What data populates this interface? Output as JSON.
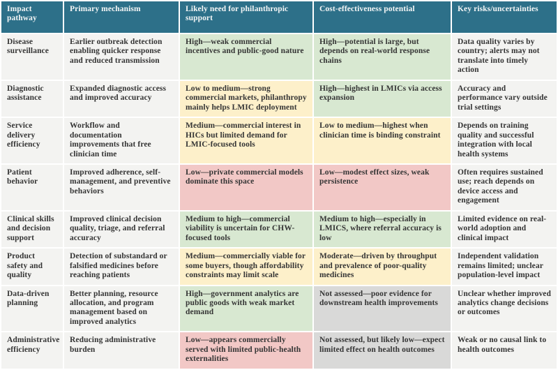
{
  "palette": {
    "header_bg": "#2d7089",
    "header_text": "#f4f6f6",
    "body_text": "#353535",
    "grid": "#ffffff",
    "green": "#d8e8d1",
    "yellow": "#fdf0ca",
    "pink": "#f2c8c6",
    "gray": "#d9d9d8",
    "neutral": "#f3f3f1"
  },
  "table": {
    "columns": [
      {
        "label": "Impact pathway"
      },
      {
        "label": "Primary mechanism"
      },
      {
        "label": "Likely need for philanthropic support"
      },
      {
        "label": "Cost-effectiveness potential"
      },
      {
        "label": "Key risks/uncertainties"
      }
    ],
    "rows": [
      {
        "pathway": "Disease surveillance",
        "mechanism": "Earlier outbreak detection enabling quicker response and reduced transmission",
        "need": {
          "text": "High—weak commercial incentives and public-good nature",
          "tone": "green"
        },
        "cost": {
          "text": "High—potential is large, but depends on real-world response chains",
          "tone": "green"
        },
        "risks": {
          "text": "Data quality varies by country; alerts may not translate into timely action",
          "tone": "neutral"
        }
      },
      {
        "pathway": "Diagnostic assistance",
        "mechanism": "Expanded diagnostic access and improved accuracy",
        "need": {
          "text": "Low to medium—strong commercial markets, philanthropy mainly helps LMIC deployment",
          "tone": "yellow"
        },
        "cost": {
          "text": "High—highest in LMICs via access expansion",
          "tone": "green"
        },
        "risks": {
          "text": "Accuracy and performance vary outside trial settings",
          "tone": "neutral"
        }
      },
      {
        "pathway": "Service delivery efficiency",
        "mechanism": "Workflow and documentation improvements that free clinician time",
        "need": {
          "text": "Medium—commercial interest in HICs but limited demand for LMIC-focused tools",
          "tone": "yellow"
        },
        "cost": {
          "text": "Low to medium—highest when clinician time is binding constraint",
          "tone": "yellow"
        },
        "risks": {
          "text": "Depends on training quality and successful integration with local health systems",
          "tone": "neutral"
        }
      },
      {
        "pathway": "Patient behavior",
        "mechanism": "Improved adherence, self-management, and preventive behaviors",
        "need": {
          "text": "Low—private commercial models dominate this space",
          "tone": "pink"
        },
        "cost": {
          "text": "Low—modest effect sizes, weak persistence",
          "tone": "pink"
        },
        "risks": {
          "text": "Often requires sustained use; reach depends on device access and engagement",
          "tone": "neutral"
        }
      },
      {
        "pathway": "Clinical skills and decision support",
        "mechanism": "Improved clinical decision quality, triage, and referral accuracy",
        "need": {
          "text": "Medium to high—commercial viability is uncertain for CHW-focused tools",
          "tone": "green"
        },
        "cost": {
          "text": "Medium to high—especially in LMICS, where referral accuracy is low",
          "tone": "green"
        },
        "risks": {
          "text": "Limited evidence on real-world adoption and clinical impact",
          "tone": "neutral"
        }
      },
      {
        "pathway": "Product safety and quality",
        "mechanism": "Detection of substandard or falsified medicines before reaching patients",
        "need": {
          "text": "Medium—commercially viable for some buyers, though affordability constraints may limit scale",
          "tone": "yellow"
        },
        "cost": {
          "text": "Moderate—driven by throughput and prevalence of poor-quality medicines",
          "tone": "yellow"
        },
        "risks": {
          "text": "Independent validation remains limited; unclear population-level impact",
          "tone": "neutral"
        }
      },
      {
        "pathway": "Data-driven planning",
        "mechanism": "Better planning, resource allocation, and program management based on improved analytics",
        "need": {
          "text": "High—government analytics are public goods with weak market demand",
          "tone": "green"
        },
        "cost": {
          "text": "Not assessed—poor evidence for downstream health improvements",
          "tone": "gray"
        },
        "risks": {
          "text": "Unclear whether improved analytics change decisions or outcomes",
          "tone": "neutral"
        }
      },
      {
        "pathway": "Administrative efficiency",
        "mechanism": "Reducing administrative burden",
        "need": {
          "text": "Low—appears commercially served with limited public-health externalities",
          "tone": "pink"
        },
        "cost": {
          "text": "Not assessed, but likely low—expect limited effect on health outcomes",
          "tone": "gray"
        },
        "risks": {
          "text": "Weak or no causal link to health outcomes",
          "tone": "neutral"
        }
      }
    ]
  }
}
